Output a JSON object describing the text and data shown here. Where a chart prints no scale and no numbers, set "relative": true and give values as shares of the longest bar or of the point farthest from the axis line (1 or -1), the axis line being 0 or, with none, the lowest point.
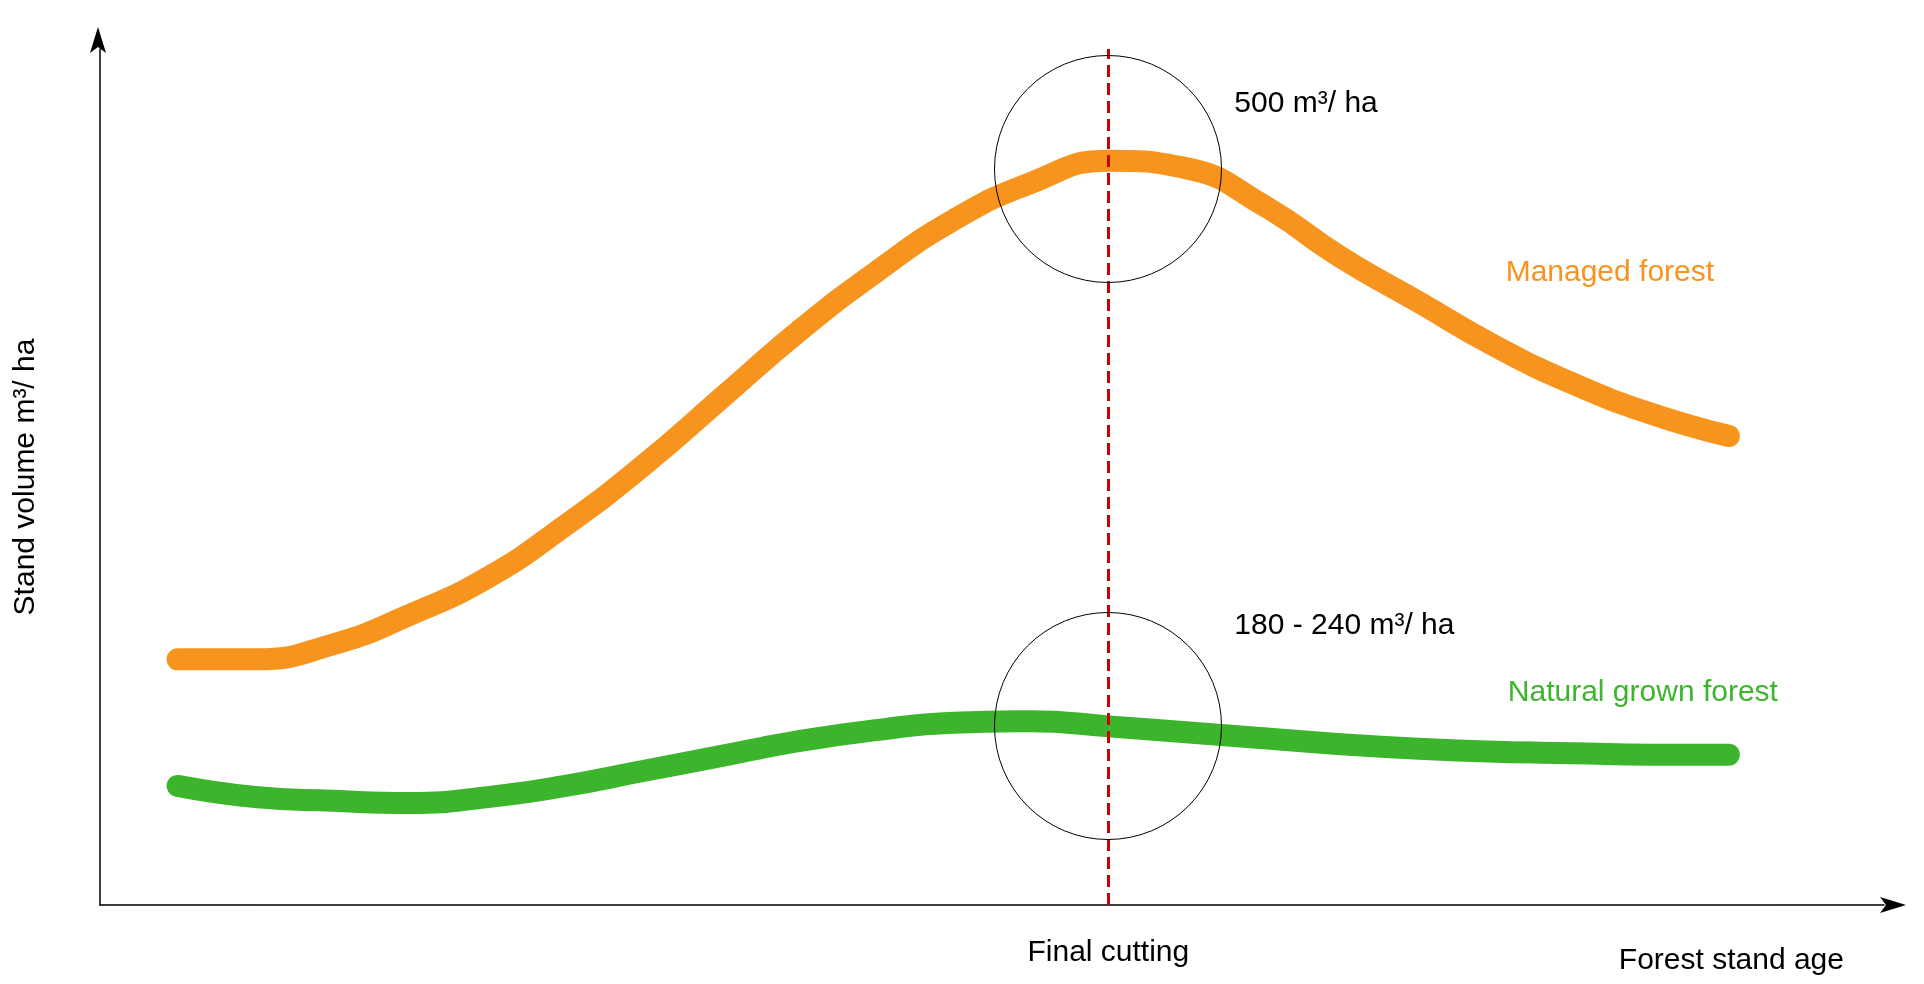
{
  "chart_data": {
    "type": "line",
    "relative": true,
    "xlabel": "Forest stand age",
    "ylabel": "Stand volume m³/ ha",
    "categories": [
      null,
      null,
      null,
      null,
      null,
      null,
      null,
      null,
      null,
      null,
      null,
      null,
      null,
      null,
      null,
      null,
      null,
      null,
      null,
      null,
      null,
      null,
      null,
      null
    ],
    "series": [
      {
        "name": "Managed forest",
        "color": "#f7941d",
        "values": [
          null,
          0.33,
          0.33,
          0.35,
          0.39,
          0.44,
          0.51,
          0.59,
          0.68,
          0.77,
          0.85,
          0.92,
          0.97,
          1,
          0.99,
          0.94,
          0.87,
          0.81,
          0.75,
          0.7,
          0.66,
          0.63,
          null,
          null
        ]
      },
      {
        "name": "Natural grown forest",
        "color": "#3cb52c",
        "values": [
          null,
          0.16,
          0.145,
          0.14,
          0.137,
          0.145,
          0.16,
          0.18,
          0.2,
          0.22,
          0.235,
          0.245,
          0.247,
          0.24,
          0.232,
          0.224,
          0.216,
          0.21,
          0.206,
          0.204,
          0.202,
          0.202,
          null,
          null
        ]
      }
    ],
    "ref_lines": [
      {
        "axis": "x",
        "label": "Final cutting",
        "color": "#cc0000",
        "line_style": "dashed"
      }
    ],
    "annotations": [
      "500 m³/ ha",
      "180 - 240 m³/ ha"
    ],
    "legend": false,
    "grid": false,
    "line_style": "solid"
  }
}
